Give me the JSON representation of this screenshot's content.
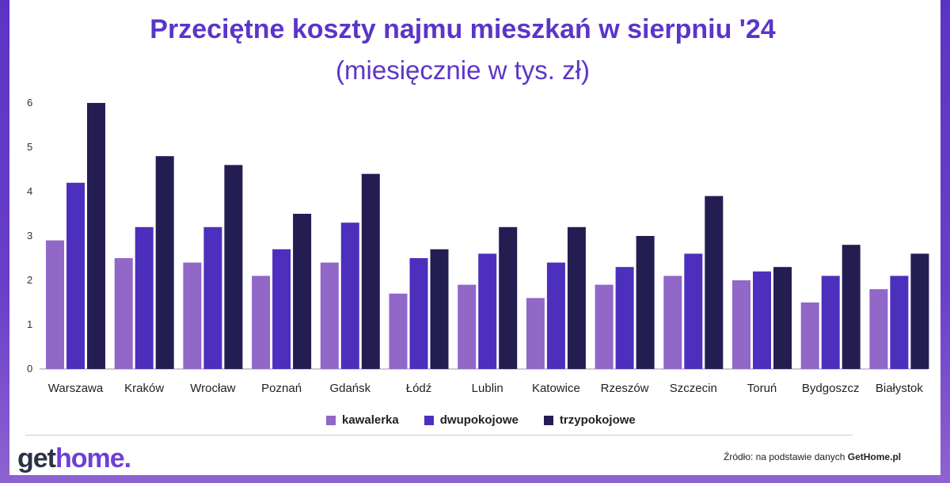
{
  "title": "Przeciętne koszty najmu mieszkań w sierpniu '24",
  "subtitle": "(miesięcznie w tys. zł)",
  "logo": {
    "part1": "get",
    "part2": "home."
  },
  "source": {
    "prefix": "Źródło: na podstawie danych ",
    "brand": "GetHome.pl"
  },
  "colors": {
    "kawalerka": "#9167c8",
    "dwupokojowe": "#4d2fbd",
    "trzypokojowe": "#231d52"
  },
  "chart_data": {
    "type": "bar",
    "categories": [
      "Warszawa",
      "Kraków",
      "Wrocław",
      "Poznań",
      "Gdańsk",
      "Łódź",
      "Lublin",
      "Katowice",
      "Rzeszów",
      "Szczecin",
      "Toruń",
      "Bydgoszcz",
      "Białystok"
    ],
    "series": [
      {
        "name": "kawalerka",
        "values": [
          2.9,
          2.5,
          2.4,
          2.1,
          2.4,
          1.7,
          1.9,
          1.6,
          1.9,
          2.1,
          2.0,
          1.5,
          1.8
        ]
      },
      {
        "name": "dwupokojowe",
        "values": [
          4.2,
          3.2,
          3.2,
          2.7,
          3.3,
          2.5,
          2.6,
          2.4,
          2.3,
          2.6,
          2.2,
          2.1,
          2.1
        ]
      },
      {
        "name": "trzypokojowe",
        "values": [
          6.0,
          4.8,
          4.6,
          3.5,
          4.4,
          2.7,
          3.2,
          3.2,
          3.0,
          3.9,
          2.3,
          2.8,
          2.6
        ]
      }
    ],
    "yticks": [
      "0",
      "1",
      "2",
      "3",
      "4",
      "5",
      "6"
    ],
    "ylim": [
      0,
      6
    ],
    "grid": false,
    "legend_position": "bottom"
  }
}
